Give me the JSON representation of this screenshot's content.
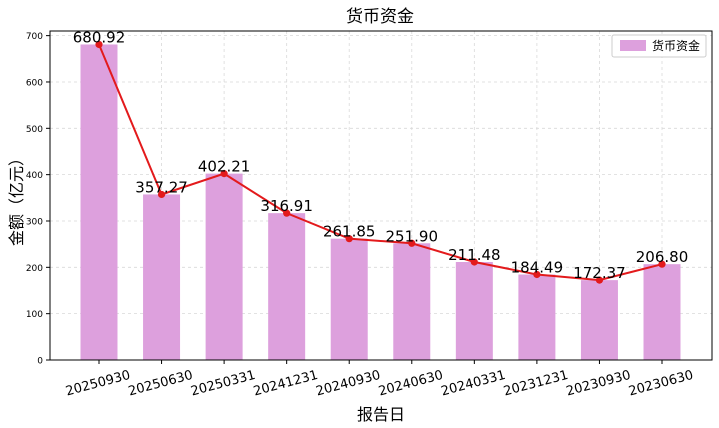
{
  "chart_data": {
    "type": "bar",
    "title": "货币资金",
    "xlabel": "报告日",
    "ylabel": "金额（亿元）",
    "categories": [
      "20250930",
      "20250630",
      "20250331",
      "20241231",
      "20240930",
      "20240630",
      "20240331",
      "20231231",
      "20230930",
      "20230630"
    ],
    "values": [
      680.92,
      357.27,
      402.21,
      316.91,
      261.85,
      251.9,
      211.48,
      184.49,
      172.37,
      206.8
    ],
    "data_labels": [
      "680.92",
      "357.27",
      "402.21",
      "316.91",
      "261.85",
      "251.90",
      "211.48",
      "184.49",
      "172.37",
      "206.80"
    ],
    "series": [
      {
        "name": "货币资金",
        "kind": "bar",
        "color": "#dda0dd"
      },
      {
        "kind": "line",
        "color": "#e31a1c"
      }
    ],
    "ylim": [
      0,
      710
    ],
    "yticks": [
      0,
      100,
      200,
      300,
      400,
      500,
      600,
      700
    ],
    "grid": true,
    "legend": "top-right"
  }
}
